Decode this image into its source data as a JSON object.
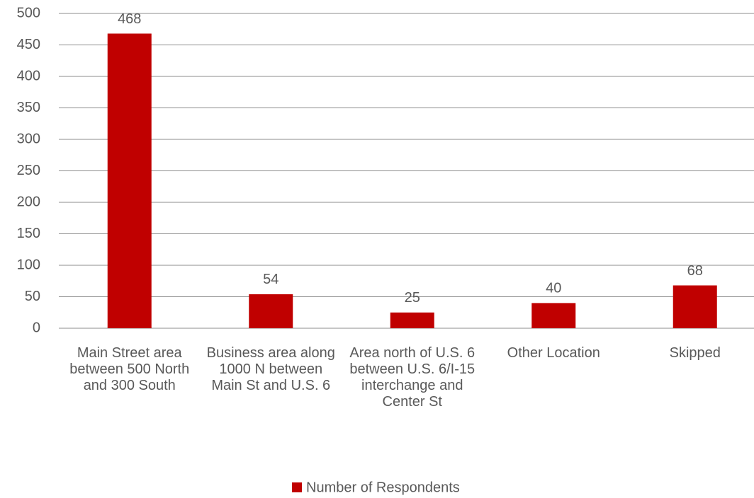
{
  "chart_data": {
    "type": "bar",
    "categories": [
      "Main Street area between 500 North and 300 South",
      "Business area along 1000 N between Main St and U.S. 6",
      "Area north of U.S. 6 between U.S. 6/I-15 interchange and Center St",
      "Other Location",
      "Skipped"
    ],
    "series": [
      {
        "name": "Number of Respondents",
        "color": "#c00000",
        "values": [
          468,
          54,
          25,
          40,
          68
        ]
      }
    ],
    "ylim": [
      0,
      500
    ],
    "yticks": [
      0,
      50,
      100,
      150,
      200,
      250,
      300,
      350,
      400,
      450,
      500
    ],
    "grid": true,
    "legend": "bottom",
    "data_labels": true
  }
}
